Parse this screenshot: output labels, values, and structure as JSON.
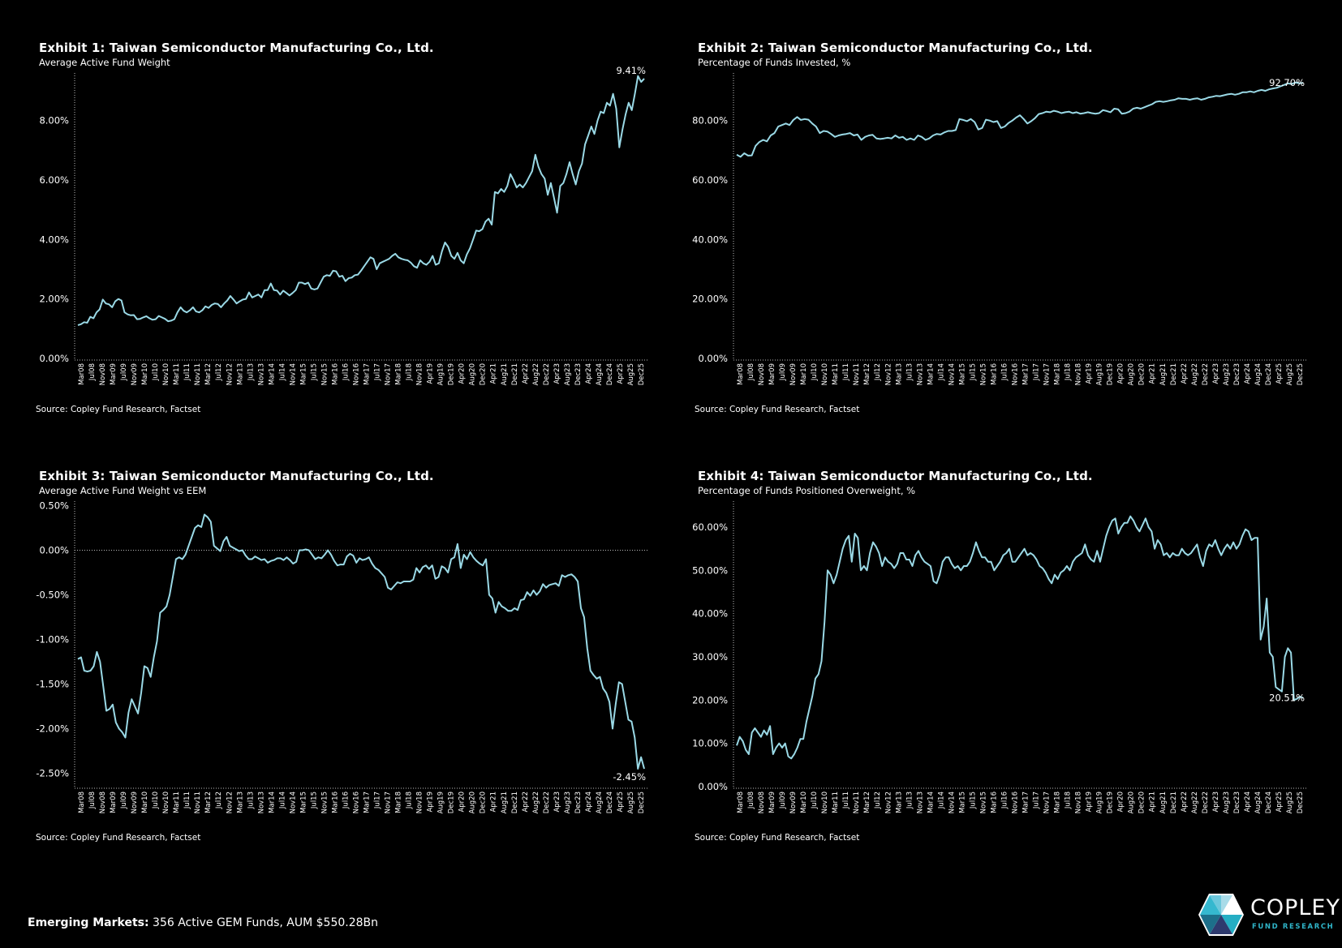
{
  "colors": {
    "background": "#000000",
    "line": "#9ad9e6",
    "text": "#ffffff",
    "axis": "#cccccc",
    "logo_accent": "#2fb4c8"
  },
  "footer": {
    "label": "Emerging Markets:",
    "text": "356 Active GEM Funds, AUM $550.28Bn"
  },
  "logo": {
    "name": "COPLEY",
    "tagline": "FUND RESEARCH"
  },
  "x_tick_labels": [
    "Mar08",
    "Jul08",
    "Nov08",
    "Mar09",
    "Jul09",
    "Nov09",
    "Mar10",
    "Jul10",
    "Nov10",
    "Mar11",
    "Jul11",
    "Nov11",
    "Mar12",
    "Jul12",
    "Nov12",
    "Mar13",
    "Jul13",
    "Nov13",
    "Mar14",
    "Jul14",
    "Nov14",
    "Mar15",
    "Jul15",
    "Nov15",
    "Mar16",
    "Jul16",
    "Nov16",
    "Mar17",
    "Jul17",
    "Nov17",
    "Mar18",
    "Jul18",
    "Nov18",
    "Apr19",
    "Aug19",
    "Dec19",
    "Apr20",
    "Aug20",
    "Dec20",
    "Apr21",
    "Aug21",
    "Dec21",
    "Apr22",
    "Aug22",
    "Dec22",
    "Apr23",
    "Aug23",
    "Dec23",
    "Apr24",
    "Aug24",
    "Dec24",
    "Apr25",
    "Aug25",
    "Dec25"
  ],
  "chart_data": [
    {
      "type": "line",
      "title": "Exhibit 1:  Taiwan Semiconductor Manufacturing Co., Ltd.",
      "subtitle": "Average Active Fund Weight",
      "source": "Source:  Copley Fund Research, Factset",
      "ylim": [
        0,
        9.6
      ],
      "yticks": [
        0,
        2,
        4,
        6,
        8
      ],
      "ytick_labels": [
        "0.00%",
        "2.00%",
        "4.00%",
        "6.00%",
        "8.00%"
      ],
      "zero_line": false,
      "end_label": "9.41%",
      "x_range": [
        "Mar08",
        "Dec25"
      ],
      "series": [
        {
          "name": "Average Active Fund Weight",
          "values": [
            1.12,
            1.15,
            1.22,
            1.2,
            1.4,
            1.35,
            1.55,
            1.65,
            1.98,
            1.85,
            1.82,
            1.72,
            1.92,
            2.0,
            1.95,
            1.55,
            1.48,
            1.45,
            1.46,
            1.32,
            1.33,
            1.38,
            1.42,
            1.35,
            1.3,
            1.32,
            1.43,
            1.38,
            1.33,
            1.25,
            1.27,
            1.32,
            1.55,
            1.72,
            1.6,
            1.55,
            1.62,
            1.72,
            1.58,
            1.55,
            1.62,
            1.75,
            1.7,
            1.8,
            1.85,
            1.83,
            1.72,
            1.85,
            1.95,
            2.1,
            1.98,
            1.85,
            1.92,
            1.98,
            2.0,
            2.22,
            2.05,
            2.1,
            2.15,
            2.05,
            2.3,
            2.3,
            2.52,
            2.3,
            2.28,
            2.15,
            2.28,
            2.2,
            2.12,
            2.2,
            2.3,
            2.55,
            2.55,
            2.5,
            2.55,
            2.35,
            2.32,
            2.35,
            2.55,
            2.75,
            2.8,
            2.78,
            2.95,
            2.93,
            2.75,
            2.78,
            2.6,
            2.7,
            2.72,
            2.8,
            2.82,
            2.95,
            3.1,
            3.25,
            3.4,
            3.35,
            3.0,
            3.2,
            3.25,
            3.3,
            3.35,
            3.45,
            3.52,
            3.4,
            3.35,
            3.32,
            3.3,
            3.22,
            3.1,
            3.05,
            3.3,
            3.2,
            3.15,
            3.25,
            3.45,
            3.15,
            3.2,
            3.6,
            3.9,
            3.75,
            3.45,
            3.35,
            3.55,
            3.3,
            3.2,
            3.5,
            3.7,
            4.0,
            4.3,
            4.28,
            4.35,
            4.6,
            4.7,
            4.5,
            5.6,
            5.55,
            5.7,
            5.6,
            5.8,
            6.2,
            6.0,
            5.75,
            5.85,
            5.75,
            5.9,
            6.1,
            6.3,
            6.85,
            6.45,
            6.2,
            6.05,
            5.5,
            5.9,
            5.4,
            4.9,
            5.8,
            5.9,
            6.2,
            6.6,
            6.2,
            5.85,
            6.3,
            6.55,
            7.2,
            7.5,
            7.8,
            7.55,
            8.0,
            8.3,
            8.25,
            8.6,
            8.5,
            8.9,
            8.4,
            7.1,
            7.7,
            8.2,
            8.6,
            8.35,
            8.9,
            9.5,
            9.3,
            9.41
          ]
        }
      ]
    },
    {
      "type": "line",
      "title": "Exhibit 2:  Taiwan Semiconductor Manufacturing Co., Ltd.",
      "subtitle": "Percentage of Funds Invested, %",
      "source": "Source:  Copley Fund Research, Factset",
      "ylim": [
        0,
        96
      ],
      "yticks": [
        0,
        20,
        40,
        60,
        80
      ],
      "ytick_labels": [
        "0.00%",
        "20.00%",
        "40.00%",
        "60.00%",
        "80.00%"
      ],
      "zero_line": false,
      "end_label": "92.70%",
      "x_range": [
        "Mar08",
        "Dec25"
      ],
      "series": [
        {
          "name": "Percentage of Funds Invested",
          "values": [
            68.5,
            67.8,
            69.0,
            68.2,
            68.3,
            71.5,
            72.8,
            73.5,
            73.0,
            75.0,
            75.8,
            78.0,
            78.5,
            79.0,
            78.5,
            80.2,
            81.2,
            80.2,
            80.5,
            80.3,
            79.0,
            78.0,
            75.8,
            76.5,
            76.3,
            75.5,
            74.5,
            75.0,
            75.3,
            75.5,
            75.8,
            75.0,
            75.3,
            73.5,
            74.5,
            75.0,
            75.2,
            74.0,
            73.8,
            74.0,
            74.2,
            74.0,
            75.0,
            74.2,
            74.5,
            73.5,
            74.0,
            73.5,
            75.0,
            74.5,
            73.5,
            74.0,
            75.0,
            75.5,
            75.3,
            76.0,
            76.5,
            76.5,
            76.8,
            80.5,
            80.2,
            79.8,
            80.5,
            79.5,
            77.0,
            77.5,
            80.3,
            80.0,
            79.5,
            79.8,
            77.5,
            78.0,
            79.2,
            80.0,
            81.0,
            81.8,
            80.5,
            79.0,
            79.8,
            80.8,
            82.2,
            82.5,
            83.0,
            82.8,
            83.3,
            83.0,
            82.5,
            82.8,
            83.0,
            82.5,
            82.8,
            82.3,
            82.5,
            82.8,
            82.5,
            82.3,
            82.5,
            83.5,
            83.2,
            82.8,
            84.0,
            83.8,
            82.3,
            82.5,
            83.0,
            84.0,
            84.3,
            84.0,
            84.5,
            85.0,
            85.5,
            86.3,
            86.5,
            86.3,
            86.5,
            86.8,
            87.0,
            87.5,
            87.3,
            87.3,
            87.0,
            87.3,
            87.5,
            87.0,
            87.3,
            87.8,
            88.0,
            88.3,
            88.2,
            88.5,
            88.8,
            89.0,
            88.7,
            89.0,
            89.5,
            89.5,
            89.8,
            89.5,
            90.0,
            90.3,
            90.0,
            90.5,
            90.8,
            91.0,
            91.5,
            92.0,
            92.5,
            92.3,
            92.8,
            92.5,
            92.7
          ]
        }
      ]
    },
    {
      "type": "line",
      "title": "Exhibit 3:  Taiwan Semiconductor Manufacturing Co., Ltd.",
      "subtitle": "Average Active Fund Weight vs EEM",
      "source": "Source:  Copley Fund Research, Factset",
      "ylim": [
        -2.65,
        0.55
      ],
      "yticks": [
        -2.5,
        -2.0,
        -1.5,
        -1.0,
        -0.5,
        0.0,
        0.5
      ],
      "ytick_labels": [
        "-2.50%",
        "-2.00%",
        "-1.50%",
        "-1.00%",
        "-0.50%",
        "0.00%",
        "0.50%"
      ],
      "zero_line": true,
      "end_label": "-2.45%",
      "x_range": [
        "Mar08",
        "Dec25"
      ],
      "series": [
        {
          "name": "Average Active Fund Weight vs EEM",
          "values": [
            -1.22,
            -1.2,
            -1.35,
            -1.36,
            -1.35,
            -1.3,
            -1.14,
            -1.25,
            -1.52,
            -1.8,
            -1.78,
            -1.73,
            -1.93,
            -2.0,
            -2.04,
            -2.1,
            -1.82,
            -1.67,
            -1.75,
            -1.83,
            -1.6,
            -1.3,
            -1.32,
            -1.42,
            -1.2,
            -1.02,
            -0.7,
            -0.67,
            -0.63,
            -0.5,
            -0.3,
            -0.1,
            -0.08,
            -0.1,
            -0.05,
            0.05,
            0.15,
            0.25,
            0.28,
            0.26,
            0.4,
            0.37,
            0.32,
            0.05,
            0.02,
            -0.01,
            0.1,
            0.15,
            0.05,
            0.03,
            0.01,
            -0.01,
            0.0,
            -0.06,
            -0.1,
            -0.1,
            -0.07,
            -0.09,
            -0.11,
            -0.1,
            -0.14,
            -0.12,
            -0.11,
            -0.09,
            -0.09,
            -0.11,
            -0.08,
            -0.11,
            -0.15,
            -0.13,
            0.0,
            0.0,
            0.01,
            0.0,
            -0.05,
            -0.1,
            -0.08,
            -0.09,
            -0.05,
            0.0,
            -0.05,
            -0.12,
            -0.17,
            -0.16,
            -0.16,
            -0.07,
            -0.04,
            -0.06,
            -0.14,
            -0.09,
            -0.11,
            -0.1,
            -0.08,
            -0.15,
            -0.2,
            -0.22,
            -0.26,
            -0.3,
            -0.42,
            -0.44,
            -0.4,
            -0.36,
            -0.37,
            -0.35,
            -0.35,
            -0.35,
            -0.33,
            -0.2,
            -0.25,
            -0.19,
            -0.17,
            -0.21,
            -0.17,
            -0.32,
            -0.3,
            -0.18,
            -0.2,
            -0.25,
            -0.1,
            -0.08,
            0.07,
            -0.2,
            -0.05,
            -0.1,
            -0.02,
            -0.08,
            -0.12,
            -0.15,
            -0.17,
            -0.1,
            -0.5,
            -0.54,
            -0.7,
            -0.58,
            -0.63,
            -0.65,
            -0.68,
            -0.68,
            -0.65,
            -0.67,
            -0.56,
            -0.55,
            -0.47,
            -0.51,
            -0.45,
            -0.5,
            -0.46,
            -0.38,
            -0.42,
            -0.39,
            -0.38,
            -0.37,
            -0.4,
            -0.28,
            -0.3,
            -0.28,
            -0.27,
            -0.3,
            -0.35,
            -0.65,
            -0.75,
            -1.1,
            -1.35,
            -1.4,
            -1.44,
            -1.42,
            -1.55,
            -1.6,
            -1.7,
            -2.0,
            -1.72,
            -1.48,
            -1.5,
            -1.7,
            -1.9,
            -1.92,
            -2.1,
            -2.45,
            -2.32,
            -2.45
          ]
        }
      ]
    },
    {
      "type": "line",
      "title": "Exhibit 4:  Taiwan Semiconductor Manufacturing Co., Ltd.",
      "subtitle": "Percentage of Funds Positioned Overweight, %",
      "source": "Source:  Copley Fund Research, Factset",
      "ylim": [
        0,
        66
      ],
      "yticks": [
        0,
        10,
        20,
        30,
        40,
        50,
        60
      ],
      "ytick_labels": [
        "0.00%",
        "10.00%",
        "20.00%",
        "30.00%",
        "40.00%",
        "50.00%",
        "60.00%"
      ],
      "zero_line": false,
      "end_label": "20.51%",
      "x_range": [
        "Mar08",
        "Dec25"
      ],
      "series": [
        {
          "name": "Percentage of Funds Positioned Overweight",
          "values": [
            9.5,
            11.5,
            10.5,
            8.5,
            7.5,
            12.5,
            13.5,
            12.5,
            11.5,
            13.0,
            12.0,
            14.0,
            7.5,
            9.0,
            10.0,
            9.0,
            10.0,
            7.0,
            6.5,
            7.5,
            9.0,
            11.0,
            11.0,
            15.0,
            18.0,
            21.0,
            25.0,
            26.0,
            29.0,
            38.0,
            50.0,
            49.0,
            47.0,
            49.0,
            52.0,
            55.0,
            57.0,
            58.0,
            52.0,
            58.5,
            57.5,
            50.0,
            51.0,
            50.0,
            54.0,
            56.5,
            55.5,
            54.0,
            51.0,
            53.0,
            52.0,
            51.5,
            50.5,
            51.5,
            54.0,
            54.0,
            52.5,
            52.5,
            51.0,
            53.5,
            54.5,
            53.0,
            52.0,
            51.5,
            51.0,
            47.5,
            47.0,
            49.0,
            52.0,
            53.0,
            53.0,
            51.5,
            50.5,
            51.0,
            50.0,
            51.0,
            51.0,
            52.0,
            54.0,
            56.5,
            54.5,
            53.0,
            53.0,
            52.0,
            52.0,
            50.0,
            51.0,
            52.0,
            53.5,
            54.0,
            55.0,
            52.0,
            52.0,
            53.0,
            54.0,
            55.0,
            53.5,
            54.0,
            53.5,
            52.5,
            51.0,
            50.5,
            49.5,
            48.0,
            47.0,
            49.0,
            48.0,
            49.5,
            50.0,
            51.0,
            50.0,
            52.0,
            53.0,
            53.5,
            54.0,
            56.0,
            53.5,
            52.5,
            52.0,
            54.5,
            52.0,
            55.0,
            58.0,
            60.0,
            61.5,
            62.0,
            58.5,
            60.0,
            61.0,
            61.0,
            62.5,
            61.5,
            60.0,
            59.0,
            60.5,
            62.0,
            60.0,
            59.0,
            55.0,
            57.0,
            56.0,
            53.5,
            54.0,
            53.0,
            54.0,
            53.5,
            53.5,
            55.0,
            54.0,
            53.5,
            54.0,
            55.0,
            56.0,
            53.0,
            51.0,
            54.5,
            56.0,
            55.5,
            57.0,
            55.0,
            53.5,
            55.0,
            56.0,
            55.0,
            56.5,
            55.0,
            56.0,
            58.0,
            59.5,
            59.0,
            57.0,
            57.5,
            57.5,
            34.0,
            37.0,
            43.5,
            31.0,
            30.0,
            23.0,
            22.5,
            22.0,
            30.0,
            32.0,
            31.0,
            20.0,
            20.3,
            20.8,
            20.51
          ]
        }
      ]
    }
  ]
}
